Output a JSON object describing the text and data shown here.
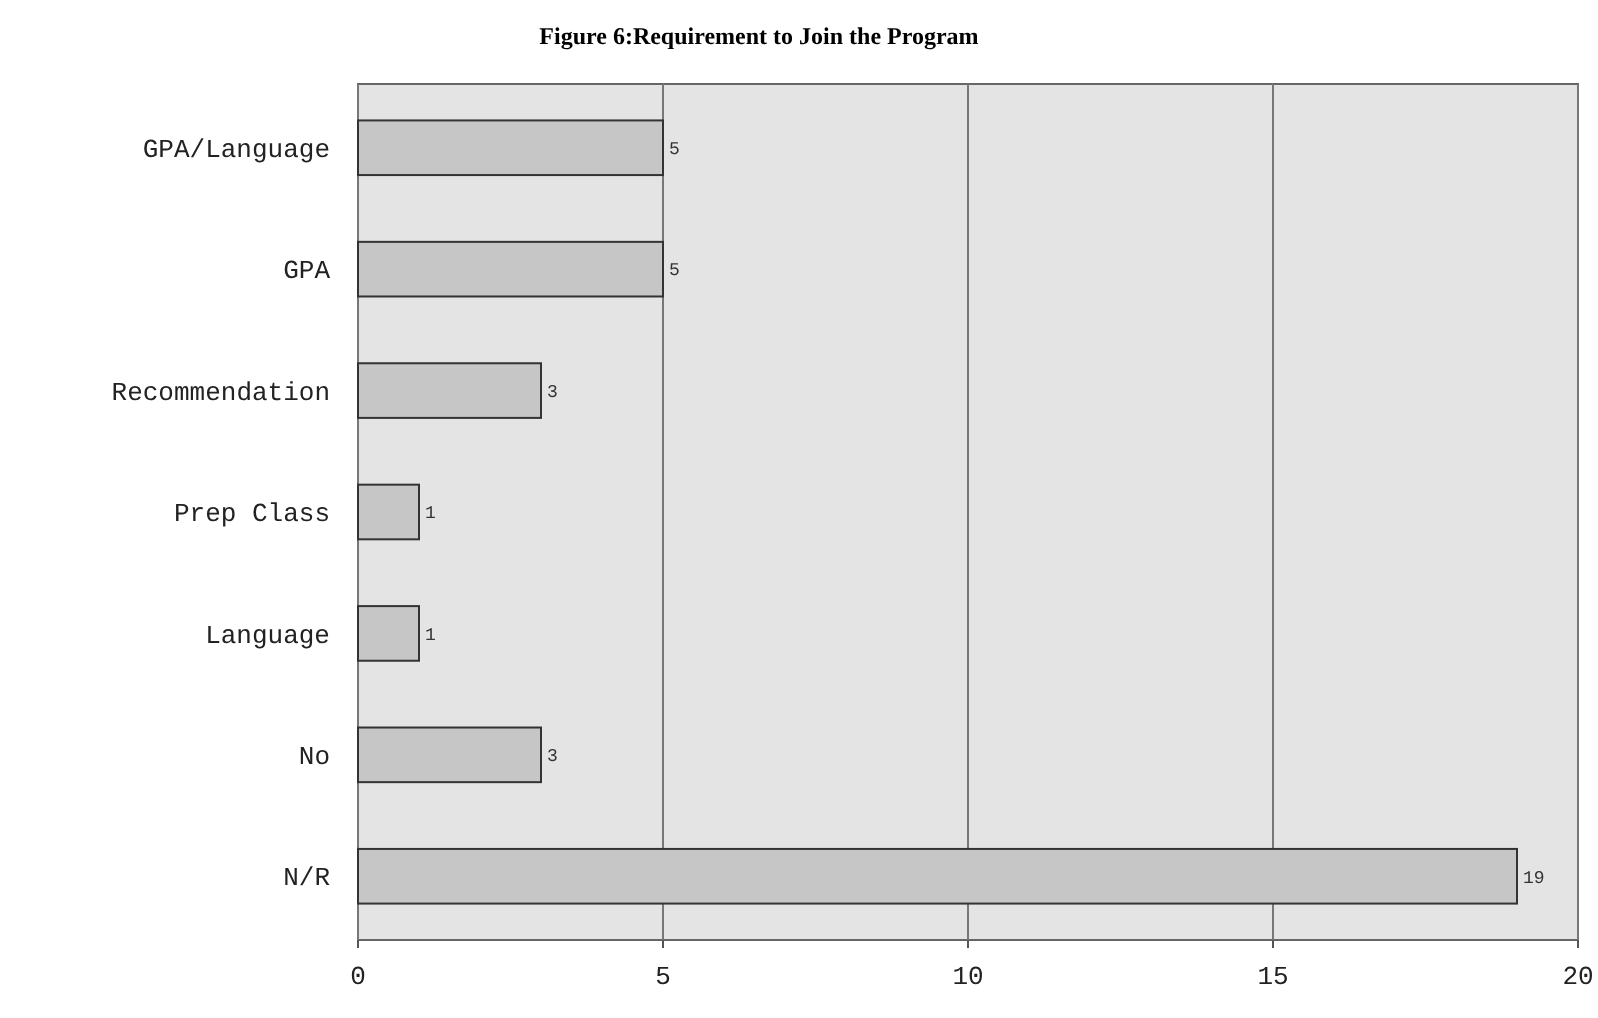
{
  "chart_data": {
    "type": "bar",
    "orientation": "horizontal",
    "title": "Figure 6:Requirement to Join the Program",
    "categories": [
      "GPA/Language",
      "GPA",
      "Recommendation",
      "Prep Class",
      "Language",
      "No",
      "N/R"
    ],
    "values": [
      5,
      5,
      3,
      1,
      1,
      3,
      19
    ],
    "color": "#c6c6c6",
    "xlim": [
      0,
      20
    ],
    "xticks": [
      0,
      5,
      10,
      15,
      20
    ],
    "grid": "x",
    "data_labels": true
  }
}
